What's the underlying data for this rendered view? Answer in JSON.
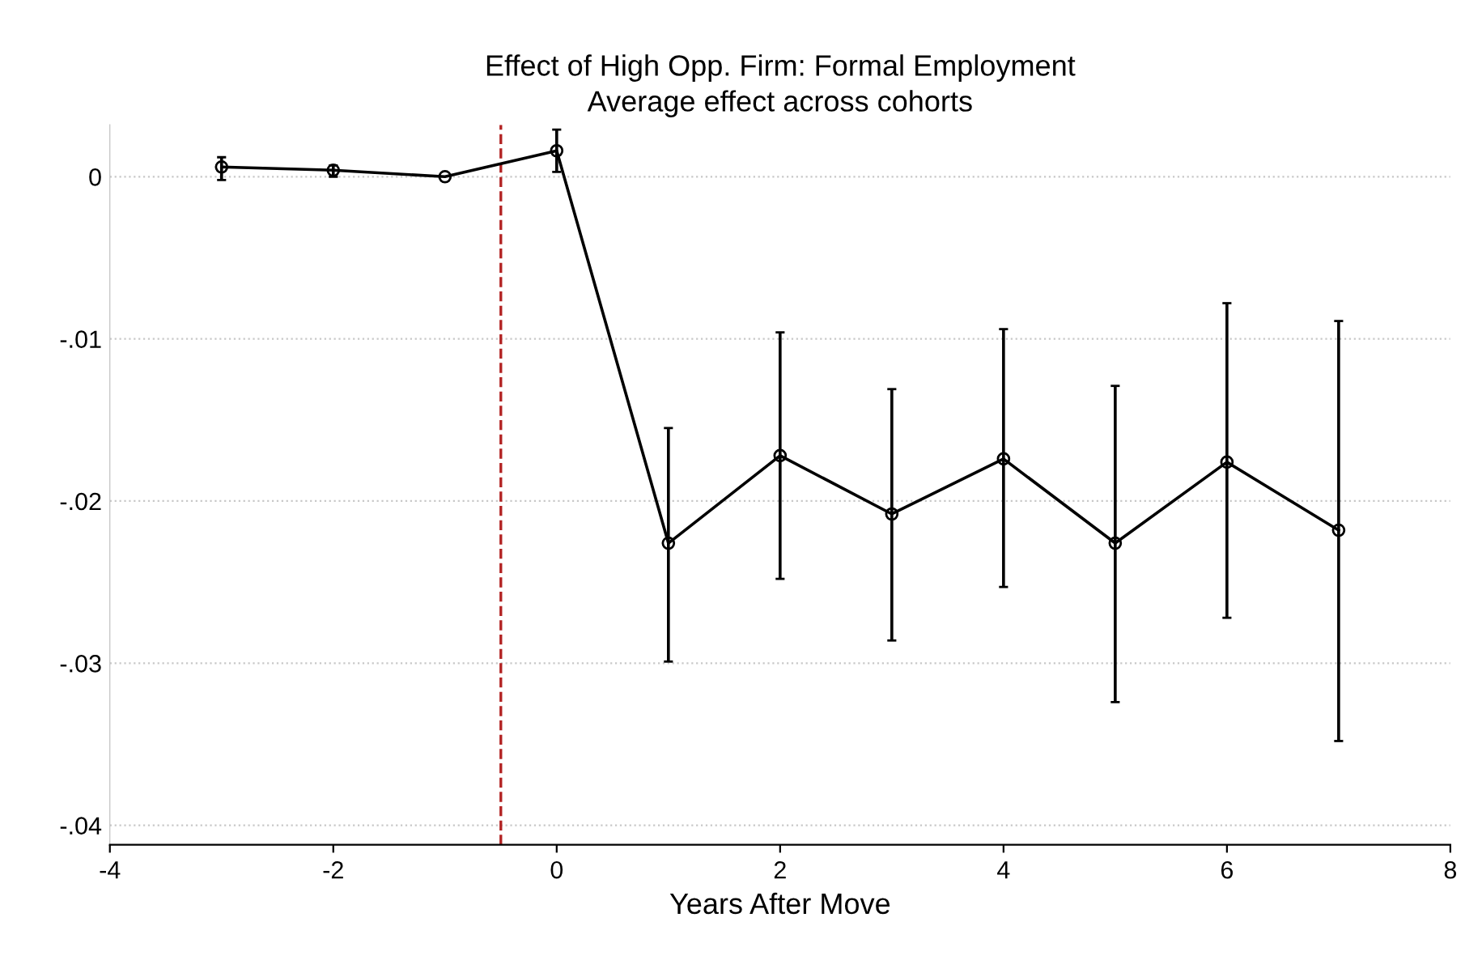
{
  "chart_data": {
    "type": "line",
    "title": "Effect of High Opp. Firm: Formal Employment",
    "subtitle": "Average effect across cohorts",
    "xlabel": "Years After Move",
    "x": [
      -3,
      -2,
      -1,
      0,
      1,
      2,
      3,
      4,
      5,
      6,
      7
    ],
    "series": [
      {
        "color": "#000000",
        "values": [
          0.0006,
          0.0004,
          0.0,
          0.0016,
          -0.0226,
          -0.0172,
          -0.0208,
          -0.0174,
          -0.0226,
          -0.0176,
          -0.0218
        ],
        "errors": [
          [
            -0.0002,
            0.0012
          ],
          [
            0.0,
            0.0007
          ],
          null,
          [
            0.0003,
            0.0029
          ],
          [
            -0.0299,
            -0.0155
          ],
          [
            -0.0248,
            -0.0096
          ],
          [
            -0.0286,
            -0.0131
          ],
          [
            -0.0253,
            -0.0094
          ],
          [
            -0.0324,
            -0.0129
          ],
          [
            -0.0272,
            -0.0078
          ],
          [
            -0.0348,
            -0.0089
          ]
        ]
      }
    ],
    "xlim": [
      -4,
      8
    ],
    "xticks": [
      -4,
      -2,
      0,
      2,
      4,
      6,
      8
    ],
    "ylim": [
      -0.0412,
      0.0032
    ],
    "yticks": [
      {
        "value": 0,
        "label": "0"
      },
      {
        "value": -0.01,
        "label": "-.01"
      },
      {
        "value": -0.02,
        "label": "-.02"
      },
      {
        "value": -0.03,
        "label": "-.03"
      },
      {
        "value": -0.04,
        "label": "-.04"
      }
    ],
    "ref_lines": [
      {
        "axis": "x",
        "value": -0.5,
        "color": "#b22222",
        "line_style": "dashed"
      }
    ],
    "grid": "y",
    "marker": "circle",
    "line_style": "solid"
  }
}
